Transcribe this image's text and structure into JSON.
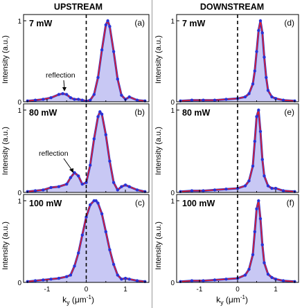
{
  "columns": [
    {
      "title": "UPSTREAM",
      "xlabel_main": "k",
      "xlabel_sub": "y",
      "xlabel_unit": " (μm",
      "xlabel_exp": "-1",
      "xlabel_close": ")"
    },
    {
      "title": "DOWNSTREAM",
      "xlabel_main": "k",
      "xlabel_sub": "y",
      "xlabel_unit": " (μm",
      "xlabel_exp": "-1",
      "xlabel_close": ")"
    }
  ],
  "ylabel": "Intensity (a.u.)",
  "panels": [
    {
      "label": "(a)",
      "power": "7 mW",
      "yticks": [
        "1",
        "0"
      ],
      "annotation": "reflection"
    },
    {
      "label": "(b)",
      "power": "80 mW",
      "yticks": [
        "1",
        "0"
      ],
      "annotation": "reflection"
    },
    {
      "label": "(c)",
      "power": "100 mW",
      "yticks": [
        "1",
        "0"
      ],
      "annotation": ""
    },
    {
      "label": "(d)",
      "power": "7 mW",
      "yticks": [
        "1",
        "0"
      ],
      "annotation": ""
    },
    {
      "label": "(e)",
      "power": "80 mW",
      "yticks": [
        "1",
        "0"
      ],
      "annotation": ""
    },
    {
      "label": "(f)",
      "power": "100 mW",
      "yticks": [
        "1",
        "0"
      ],
      "annotation": ""
    }
  ],
  "xticks": [
    "-1",
    "0",
    "1"
  ],
  "colors": {
    "fill": "#c8c8f4",
    "fit_line": "#e8202a",
    "data_line": "#1d2fd4",
    "data_points": "#2a33d6"
  },
  "chart_data": [
    {
      "type": "line",
      "panel": "(a)",
      "column": "UPSTREAM",
      "power": "7 mW",
      "xlim": [
        -1.6,
        1.6
      ],
      "ylim": [
        0,
        1.0
      ],
      "xticks": [
        -1,
        0,
        1
      ],
      "x": [
        -1.5,
        -1.3,
        -1.1,
        -0.9,
        -0.7,
        -0.6,
        -0.5,
        -0.4,
        -0.3,
        -0.2,
        -0.1,
        0.0,
        0.1,
        0.2,
        0.3,
        0.4,
        0.5,
        0.55,
        0.6,
        0.7,
        0.8,
        0.9,
        1.0,
        1.1,
        1.3,
        1.5
      ],
      "series": [
        {
          "values": [
            0.01,
            0.02,
            0.03,
            0.05,
            0.09,
            0.1,
            0.09,
            0.05,
            0.03,
            0.03,
            0.02,
            0.01,
            0.02,
            0.09,
            0.3,
            0.64,
            0.95,
            1.0,
            0.93,
            0.62,
            0.28,
            0.08,
            0.03,
            0.06,
            0.02,
            0.01
          ]
        }
      ]
    },
    {
      "type": "line",
      "panel": "(b)",
      "column": "UPSTREAM",
      "power": "80 mW",
      "xlim": [
        -1.6,
        1.6
      ],
      "ylim": [
        0,
        1.0
      ],
      "xticks": [
        -1,
        0,
        1
      ],
      "x": [
        -1.5,
        -1.3,
        -1.1,
        -0.9,
        -0.7,
        -0.5,
        -0.4,
        -0.3,
        -0.2,
        -0.1,
        0.0,
        0.1,
        0.2,
        0.3,
        0.35,
        0.4,
        0.5,
        0.6,
        0.7,
        0.8,
        0.9,
        1.0,
        1.1,
        1.3,
        1.5
      ],
      "series": [
        {
          "values": [
            0.01,
            0.02,
            0.03,
            0.06,
            0.07,
            0.1,
            0.18,
            0.24,
            0.2,
            0.1,
            0.12,
            0.33,
            0.65,
            0.92,
            0.98,
            0.95,
            0.7,
            0.38,
            0.12,
            0.03,
            0.07,
            0.09,
            0.07,
            0.03,
            0.01
          ]
        }
      ]
    },
    {
      "type": "line",
      "panel": "(c)",
      "column": "UPSTREAM",
      "power": "100 mW",
      "xlim": [
        -1.6,
        1.6
      ],
      "ylim": [
        0,
        1.0
      ],
      "xticks": [
        -1,
        0,
        1
      ],
      "x": [
        -1.5,
        -1.3,
        -1.1,
        -0.9,
        -0.7,
        -0.5,
        -0.4,
        -0.3,
        -0.2,
        -0.1,
        0.0,
        0.1,
        0.2,
        0.25,
        0.3,
        0.4,
        0.5,
        0.6,
        0.7,
        0.8,
        0.9,
        1.0,
        1.1,
        1.3,
        1.5
      ],
      "series": [
        {
          "values": [
            0.01,
            0.02,
            0.03,
            0.04,
            0.05,
            0.07,
            0.09,
            0.2,
            0.36,
            0.58,
            0.8,
            0.95,
            1.0,
            1.0,
            0.97,
            0.84,
            0.62,
            0.4,
            0.22,
            0.09,
            0.04,
            0.05,
            0.04,
            0.02,
            0.01
          ]
        }
      ]
    },
    {
      "type": "line",
      "panel": "(d)",
      "column": "DOWNSTREAM",
      "power": "7 mW",
      "xlim": [
        -1.6,
        1.6
      ],
      "ylim": [
        0,
        1.0
      ],
      "xticks": [
        -1,
        0,
        1
      ],
      "x": [
        -1.5,
        -1.2,
        -0.9,
        -0.6,
        -0.3,
        0.0,
        0.2,
        0.3,
        0.4,
        0.45,
        0.5,
        0.55,
        0.6,
        0.65,
        0.7,
        0.75,
        0.8,
        0.9,
        1.0,
        1.2,
        1.5
      ],
      "series": [
        {
          "values": [
            0.01,
            0.02,
            0.02,
            0.02,
            0.03,
            0.04,
            0.06,
            0.1,
            0.22,
            0.38,
            0.62,
            0.88,
            1.0,
            0.85,
            0.55,
            0.3,
            0.14,
            0.06,
            0.04,
            0.02,
            0.01
          ]
        }
      ]
    },
    {
      "type": "line",
      "panel": "(e)",
      "column": "DOWNSTREAM",
      "power": "80 mW",
      "xlim": [
        -1.6,
        1.6
      ],
      "ylim": [
        0,
        1.0
      ],
      "xticks": [
        -1,
        0,
        1
      ],
      "x": [
        -1.5,
        -1.2,
        -0.9,
        -0.6,
        -0.3,
        0.0,
        0.2,
        0.3,
        0.4,
        0.45,
        0.5,
        0.55,
        0.6,
        0.65,
        0.7,
        0.8,
        0.9,
        1.0,
        1.2,
        1.5
      ],
      "series": [
        {
          "values": [
            0.01,
            0.02,
            0.02,
            0.03,
            0.04,
            0.05,
            0.08,
            0.14,
            0.32,
            0.62,
            0.92,
            1.0,
            0.74,
            0.4,
            0.2,
            0.08,
            0.05,
            0.05,
            0.02,
            0.01
          ]
        }
      ]
    },
    {
      "type": "line",
      "panel": "(f)",
      "column": "DOWNSTREAM",
      "power": "100 mW",
      "xlim": [
        -1.6,
        1.6
      ],
      "ylim": [
        0,
        1.0
      ],
      "xticks": [
        -1,
        0,
        1
      ],
      "x": [
        -1.5,
        -1.2,
        -0.9,
        -0.6,
        -0.3,
        0.0,
        0.2,
        0.3,
        0.4,
        0.45,
        0.5,
        0.55,
        0.6,
        0.65,
        0.7,
        0.8,
        0.9,
        1.0,
        1.2,
        1.5
      ],
      "series": [
        {
          "values": [
            0.01,
            0.02,
            0.02,
            0.03,
            0.04,
            0.05,
            0.09,
            0.16,
            0.34,
            0.62,
            0.9,
            1.0,
            0.78,
            0.46,
            0.24,
            0.1,
            0.06,
            0.04,
            0.02,
            0.01
          ]
        }
      ]
    }
  ]
}
